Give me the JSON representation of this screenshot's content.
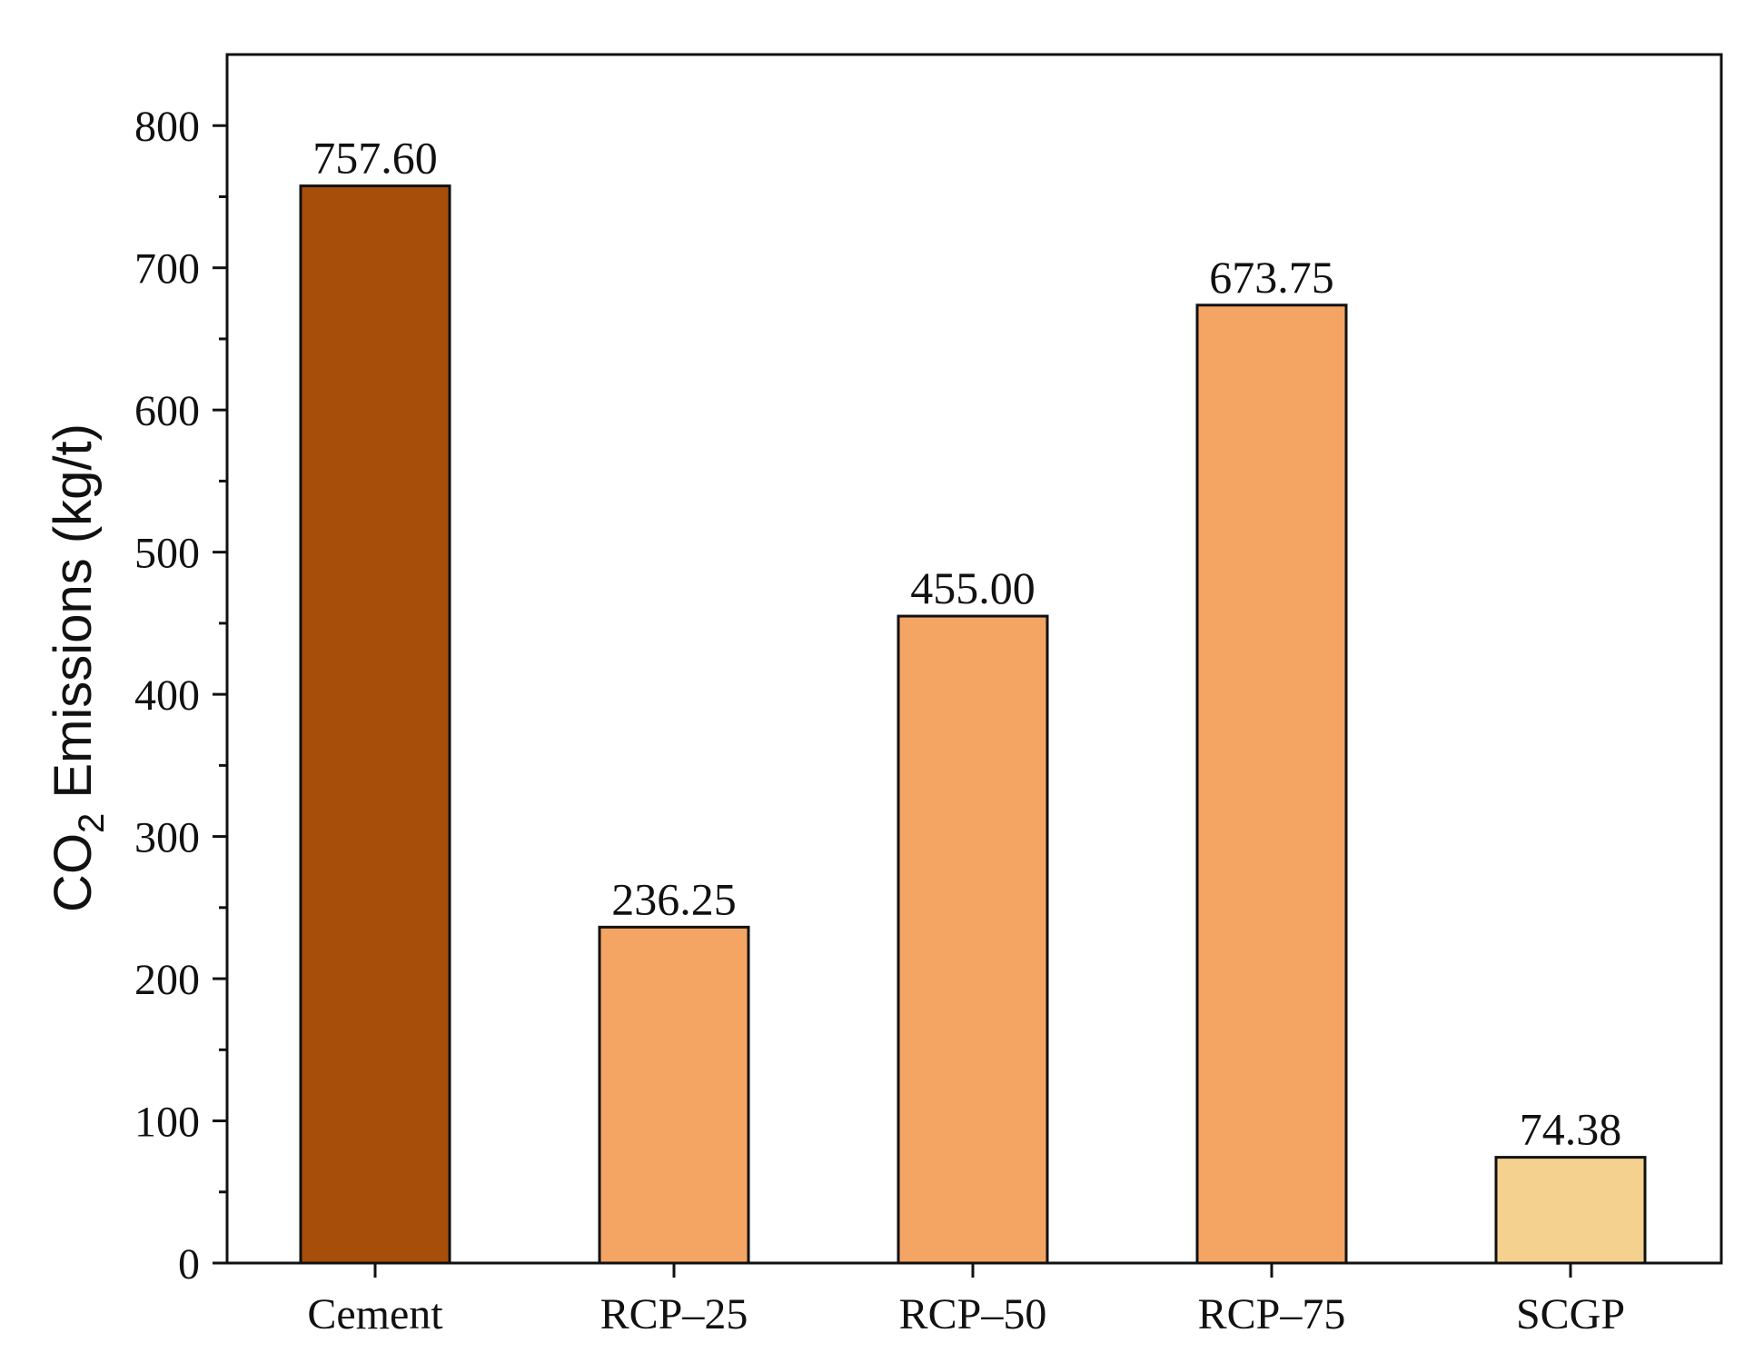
{
  "chart_data": {
    "type": "bar",
    "title": "",
    "xlabel": "",
    "ylabel": {
      "prefix": "CO",
      "subscript": "2",
      "suffix": " Emissions (kg/t)"
    },
    "categories": [
      "Cement",
      "RCP–25",
      "RCP–50",
      "RCP–75",
      "SCGP"
    ],
    "values": [
      757.6,
      236.25,
      455.0,
      673.75,
      74.38
    ],
    "value_labels": [
      "757.60",
      "236.25",
      "455.00",
      "673.75",
      "74.38"
    ],
    "bar_colors": [
      "#a84e0b",
      "#f4a564",
      "#f4a564",
      "#f4a564",
      "#f5d18f"
    ],
    "ylim": [
      0,
      850
    ],
    "yticks": [
      0,
      100,
      200,
      300,
      400,
      500,
      600,
      700,
      800
    ],
    "ytick_labels": [
      "0",
      "100",
      "200",
      "300",
      "400",
      "500",
      "600",
      "700",
      "800"
    ],
    "minor_ytick_step": 50,
    "grid": false,
    "legend": "none"
  }
}
